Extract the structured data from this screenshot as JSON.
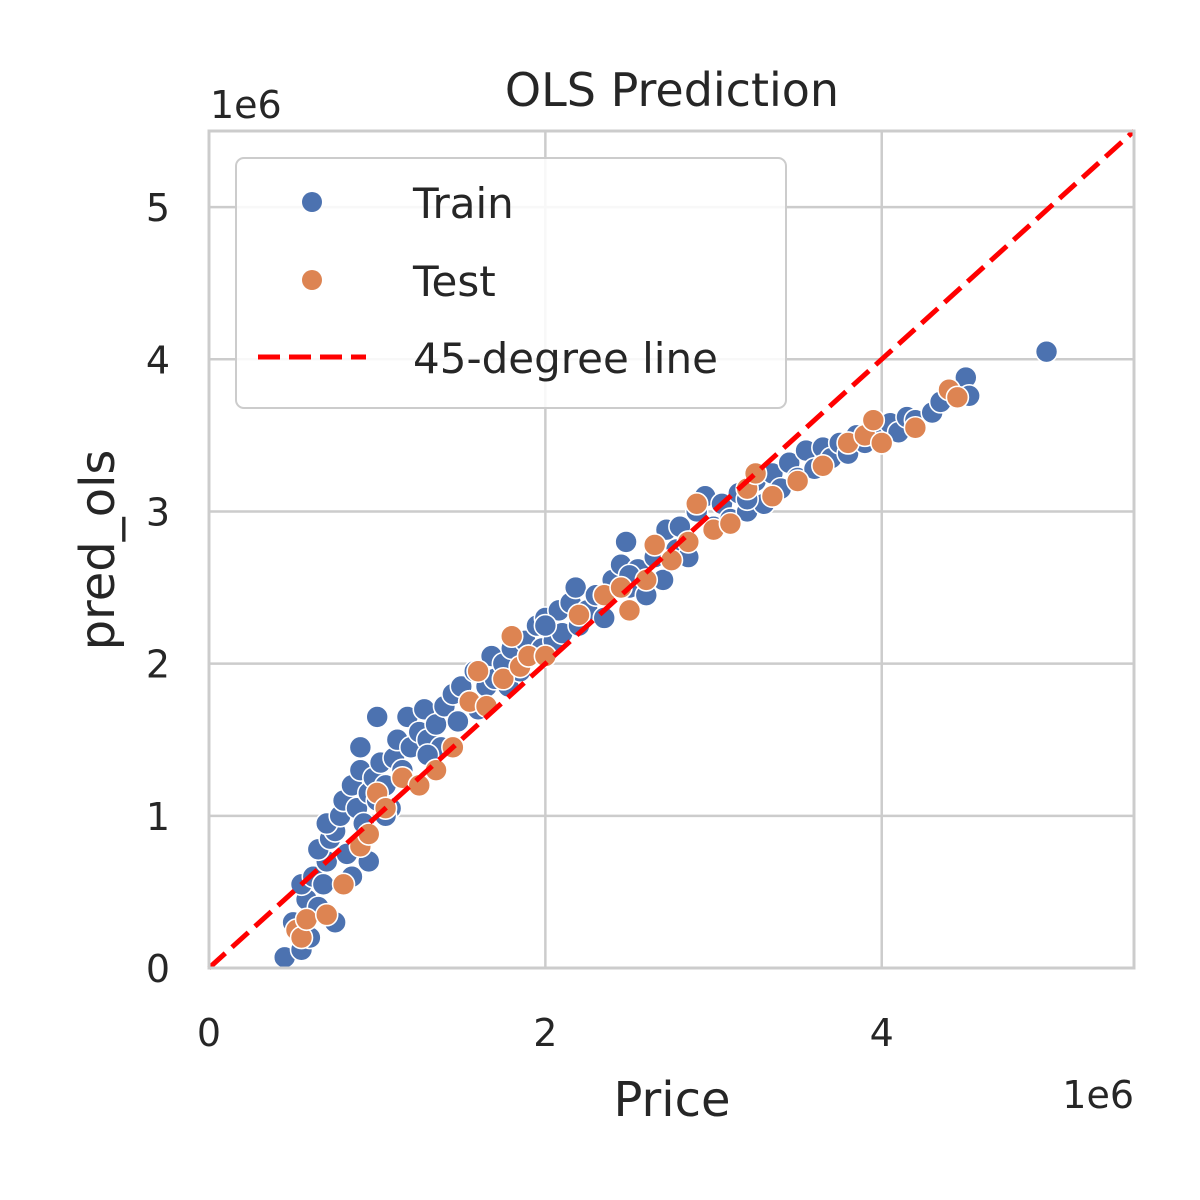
{
  "chart_data": {
    "type": "scatter",
    "title": "OLS Prediction",
    "xlabel": "Price",
    "ylabel": "pred_ols",
    "x_offset_label": "1e6",
    "y_offset_label": "1e6",
    "xlim": [
      0,
      5.5
    ],
    "ylim": [
      0,
      5.5
    ],
    "x_ticks": [
      0,
      2,
      4
    ],
    "y_ticks": [
      0,
      1,
      2,
      3,
      4,
      5
    ],
    "x_tick_labels": [
      "0",
      "2",
      "4"
    ],
    "y_tick_labels": [
      "0",
      "1",
      "2",
      "3",
      "4",
      "5"
    ],
    "grid": true,
    "legend_position": "upper-left",
    "series": [
      {
        "name": "Train",
        "color": "#4c72b0",
        "marker": "circle",
        "points": [
          [
            0.45,
            0.07
          ],
          [
            0.55,
            0.12
          ],
          [
            0.5,
            0.3
          ],
          [
            0.58,
            0.45
          ],
          [
            0.55,
            0.55
          ],
          [
            0.62,
            0.6
          ],
          [
            0.65,
            0.4
          ],
          [
            0.68,
            0.55
          ],
          [
            0.7,
            0.7
          ],
          [
            0.65,
            0.78
          ],
          [
            0.72,
            0.85
          ],
          [
            0.75,
            0.9
          ],
          [
            0.7,
            0.95
          ],
          [
            0.78,
            1.0
          ],
          [
            0.82,
            0.75
          ],
          [
            0.8,
            1.1
          ],
          [
            0.85,
            1.2
          ],
          [
            0.88,
            1.05
          ],
          [
            0.9,
            1.3
          ],
          [
            0.92,
            0.95
          ],
          [
            0.95,
            1.15
          ],
          [
            0.9,
            1.45
          ],
          [
            0.98,
            1.25
          ],
          [
            1.0,
            1.1
          ],
          [
            1.02,
            1.35
          ],
          [
            1.05,
            1.2
          ],
          [
            1.08,
            1.05
          ],
          [
            1.1,
            1.38
          ],
          [
            1.12,
            1.5
          ],
          [
            1.0,
            1.65
          ],
          [
            1.15,
            1.3
          ],
          [
            1.2,
            1.45
          ],
          [
            1.18,
            1.65
          ],
          [
            1.25,
            1.55
          ],
          [
            1.28,
            1.7
          ],
          [
            1.3,
            1.5
          ],
          [
            1.35,
            1.6
          ],
          [
            1.38,
            1.45
          ],
          [
            1.4,
            1.72
          ],
          [
            1.45,
            1.8
          ],
          [
            1.48,
            1.62
          ],
          [
            1.5,
            1.85
          ],
          [
            1.55,
            1.75
          ],
          [
            1.58,
            1.95
          ],
          [
            1.6,
            1.7
          ],
          [
            1.65,
            1.85
          ],
          [
            1.68,
            2.05
          ],
          [
            1.7,
            1.9
          ],
          [
            1.75,
            2.0
          ],
          [
            1.78,
            1.85
          ],
          [
            1.8,
            2.1
          ],
          [
            1.85,
            1.95
          ],
          [
            1.88,
            2.15
          ],
          [
            1.9,
            2.05
          ],
          [
            1.95,
            2.25
          ],
          [
            1.98,
            2.1
          ],
          [
            2.0,
            2.3
          ],
          [
            2.05,
            2.15
          ],
          [
            2.08,
            2.35
          ],
          [
            2.1,
            2.2
          ],
          [
            2.15,
            2.4
          ],
          [
            2.2,
            2.25
          ],
          [
            2.18,
            2.5
          ],
          [
            2.25,
            2.35
          ],
          [
            2.3,
            2.45
          ],
          [
            2.35,
            2.3
          ],
          [
            2.4,
            2.55
          ],
          [
            2.45,
            2.65
          ],
          [
            2.5,
            2.5
          ],
          [
            2.48,
            2.8
          ],
          [
            2.55,
            2.62
          ],
          [
            2.6,
            2.45
          ],
          [
            2.65,
            2.7
          ],
          [
            2.7,
            2.55
          ],
          [
            2.72,
            2.88
          ],
          [
            2.78,
            2.75
          ],
          [
            2.8,
            2.9
          ],
          [
            2.85,
            2.7
          ],
          [
            2.9,
            3.0
          ],
          [
            2.95,
            3.1
          ],
          [
            3.0,
            2.9
          ],
          [
            3.05,
            3.05
          ],
          [
            3.1,
            2.95
          ],
          [
            3.15,
            3.12
          ],
          [
            3.2,
            3.0
          ],
          [
            3.25,
            3.2
          ],
          [
            3.3,
            3.05
          ],
          [
            3.35,
            3.25
          ],
          [
            3.4,
            3.15
          ],
          [
            3.45,
            3.32
          ],
          [
            3.5,
            3.22
          ],
          [
            3.55,
            3.4
          ],
          [
            3.6,
            3.28
          ],
          [
            3.65,
            3.42
          ],
          [
            3.7,
            3.35
          ],
          [
            3.75,
            3.45
          ],
          [
            3.8,
            3.38
          ],
          [
            3.85,
            3.5
          ],
          [
            3.9,
            3.45
          ],
          [
            3.95,
            3.55
          ],
          [
            4.0,
            3.48
          ],
          [
            4.05,
            3.58
          ],
          [
            4.1,
            3.52
          ],
          [
            4.15,
            3.62
          ],
          [
            4.2,
            3.6
          ],
          [
            4.3,
            3.65
          ],
          [
            4.35,
            3.72
          ],
          [
            4.45,
            3.78
          ],
          [
            4.5,
            3.88
          ],
          [
            4.52,
            3.76
          ],
          [
            4.98,
            4.05
          ],
          [
            1.05,
            1.0
          ],
          [
            0.95,
            0.7
          ],
          [
            0.85,
            0.6
          ],
          [
            0.6,
            0.2
          ],
          [
            0.75,
            0.3
          ],
          [
            1.3,
            1.4
          ],
          [
            2.0,
            2.25
          ],
          [
            2.5,
            2.58
          ],
          [
            3.2,
            3.08
          ]
        ]
      },
      {
        "name": "Test",
        "color": "#dd8452",
        "marker": "circle",
        "points": [
          [
            0.52,
            0.25
          ],
          [
            0.55,
            0.2
          ],
          [
            0.58,
            0.32
          ],
          [
            0.7,
            0.35
          ],
          [
            0.8,
            0.55
          ],
          [
            0.9,
            0.8
          ],
          [
            0.95,
            0.88
          ],
          [
            1.0,
            1.15
          ],
          [
            1.05,
            1.05
          ],
          [
            1.15,
            1.25
          ],
          [
            1.25,
            1.2
          ],
          [
            1.35,
            1.3
          ],
          [
            1.45,
            1.45
          ],
          [
            1.55,
            1.75
          ],
          [
            1.6,
            1.95
          ],
          [
            1.65,
            1.72
          ],
          [
            1.75,
            1.9
          ],
          [
            1.8,
            2.18
          ],
          [
            1.85,
            1.98
          ],
          [
            1.9,
            2.05
          ],
          [
            2.0,
            2.05
          ],
          [
            2.2,
            2.32
          ],
          [
            2.35,
            2.45
          ],
          [
            2.45,
            2.5
          ],
          [
            2.5,
            2.35
          ],
          [
            2.6,
            2.55
          ],
          [
            2.65,
            2.78
          ],
          [
            2.75,
            2.68
          ],
          [
            2.85,
            2.8
          ],
          [
            2.9,
            3.05
          ],
          [
            3.0,
            2.88
          ],
          [
            3.1,
            2.92
          ],
          [
            3.2,
            3.15
          ],
          [
            3.25,
            3.25
          ],
          [
            3.35,
            3.1
          ],
          [
            3.5,
            3.2
          ],
          [
            3.65,
            3.3
          ],
          [
            3.8,
            3.45
          ],
          [
            3.9,
            3.5
          ],
          [
            3.95,
            3.6
          ],
          [
            4.0,
            3.45
          ],
          [
            4.2,
            3.55
          ],
          [
            4.4,
            3.8
          ],
          [
            4.45,
            3.75
          ]
        ]
      },
      {
        "name": "45-degree line",
        "color": "#ff0000",
        "style": "dashed",
        "line": [
          [
            0,
            0
          ],
          [
            5.5,
            5.5
          ]
        ]
      }
    ]
  }
}
